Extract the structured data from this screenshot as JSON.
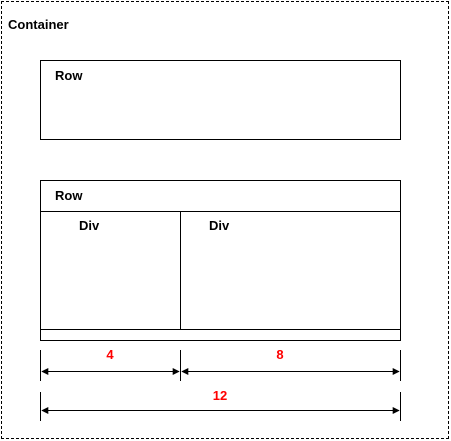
{
  "container": {
    "label": "Container"
  },
  "row1": {
    "label": "Row"
  },
  "row2": {
    "label": "Row",
    "div_left": {
      "label": "Div"
    },
    "div_right": {
      "label": "Div"
    }
  },
  "dimensions": {
    "left_span": "4",
    "right_span": "8",
    "total_span": "12",
    "accent_color": "#ff0000"
  }
}
